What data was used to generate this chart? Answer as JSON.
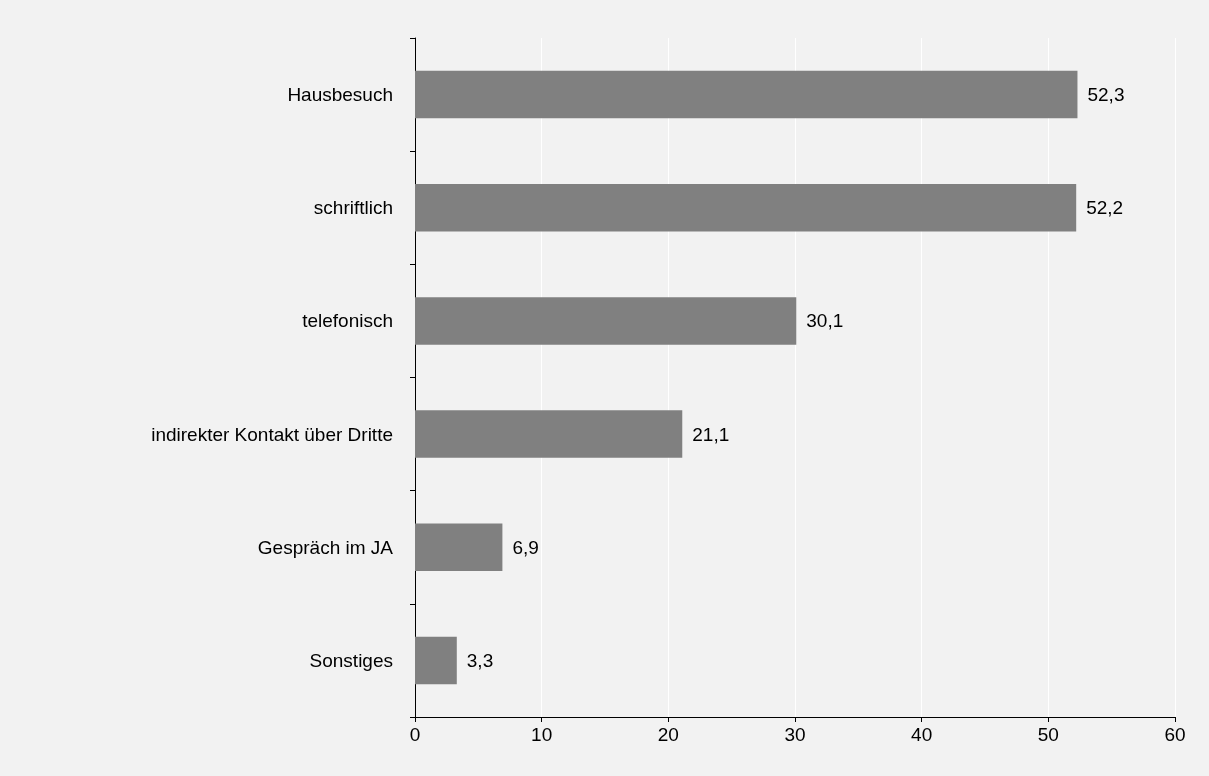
{
  "chart_data": {
    "type": "bar",
    "orientation": "horizontal",
    "categories": [
      "Hausbesuch",
      "schriftlich",
      "telefonisch",
      "indirekter Kontakt über Dritte",
      "Gespräch im JA",
      "Sonstiges"
    ],
    "values": [
      52.3,
      52.2,
      30.1,
      21.1,
      6.9,
      3.3
    ],
    "value_labels": [
      "52,3",
      "52,2",
      "30,1",
      "21,1",
      "6,9",
      "3,3"
    ],
    "color": "#808080",
    "xlim": [
      0,
      60
    ],
    "xticks": [
      0,
      10,
      20,
      30,
      40,
      50,
      60
    ],
    "grid": "x"
  }
}
